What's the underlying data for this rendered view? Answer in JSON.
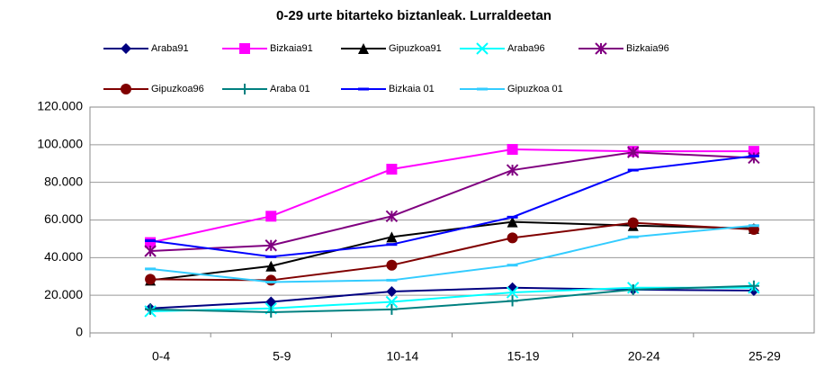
{
  "chart_data": {
    "type": "line",
    "title": "0-29 urte bitarteko biztanleak. Lurraldeetan",
    "categories": [
      "0-4",
      "5-9",
      "10-14",
      "15-19",
      "20-24",
      "25-29"
    ],
    "series": [
      {
        "name": "Araba91",
        "color": "#000080",
        "marker": "diamond",
        "values": [
          13000,
          16500,
          22000,
          24000,
          23000,
          22500
        ]
      },
      {
        "name": "Bizkaia91",
        "color": "#ff00ff",
        "marker": "square",
        "values": [
          48000,
          62000,
          87000,
          97500,
          96500,
          96500
        ]
      },
      {
        "name": "Gipuzkoa91",
        "color": "#000000",
        "marker": "triangle",
        "values": [
          28000,
          35500,
          51000,
          59000,
          57000,
          55500
        ]
      },
      {
        "name": "Araba96",
        "color": "#00ffff",
        "marker": "x",
        "values": [
          11500,
          13000,
          16500,
          21500,
          24000,
          24000
        ]
      },
      {
        "name": "Bizkaia96",
        "color": "#800080",
        "marker": "star",
        "values": [
          43500,
          46500,
          62000,
          86500,
          96000,
          93000
        ]
      },
      {
        "name": "Gipuzkoa96",
        "color": "#800000",
        "marker": "circle",
        "values": [
          28500,
          28000,
          36000,
          50500,
          58500,
          55000
        ]
      },
      {
        "name": "Araba 01",
        "color": "#008080",
        "marker": "plus",
        "values": [
          12500,
          11000,
          12500,
          17000,
          23000,
          25000
        ]
      },
      {
        "name": "Bizkaia 01",
        "color": "#0000ff",
        "marker": "dash",
        "values": [
          49000,
          40500,
          47000,
          61500,
          86500,
          94000
        ]
      },
      {
        "name": "Gipuzkoa 01",
        "color": "#33ccff",
        "marker": "dash",
        "values": [
          34000,
          27000,
          28000,
          36000,
          51000,
          57000
        ]
      }
    ],
    "ylim": [
      0,
      120000
    ],
    "yticks": [
      0,
      {
        "value": 20000,
        "label": "20.000"
      },
      {
        "value": 40000,
        "label": "40.000"
      },
      {
        "value": 60000,
        "label": "60.000"
      },
      {
        "value": 80000,
        "label": "80.000"
      },
      {
        "value": 100000,
        "label": "100.000"
      },
      {
        "value": 120000,
        "label": "120.000"
      }
    ],
    "grid": true
  }
}
